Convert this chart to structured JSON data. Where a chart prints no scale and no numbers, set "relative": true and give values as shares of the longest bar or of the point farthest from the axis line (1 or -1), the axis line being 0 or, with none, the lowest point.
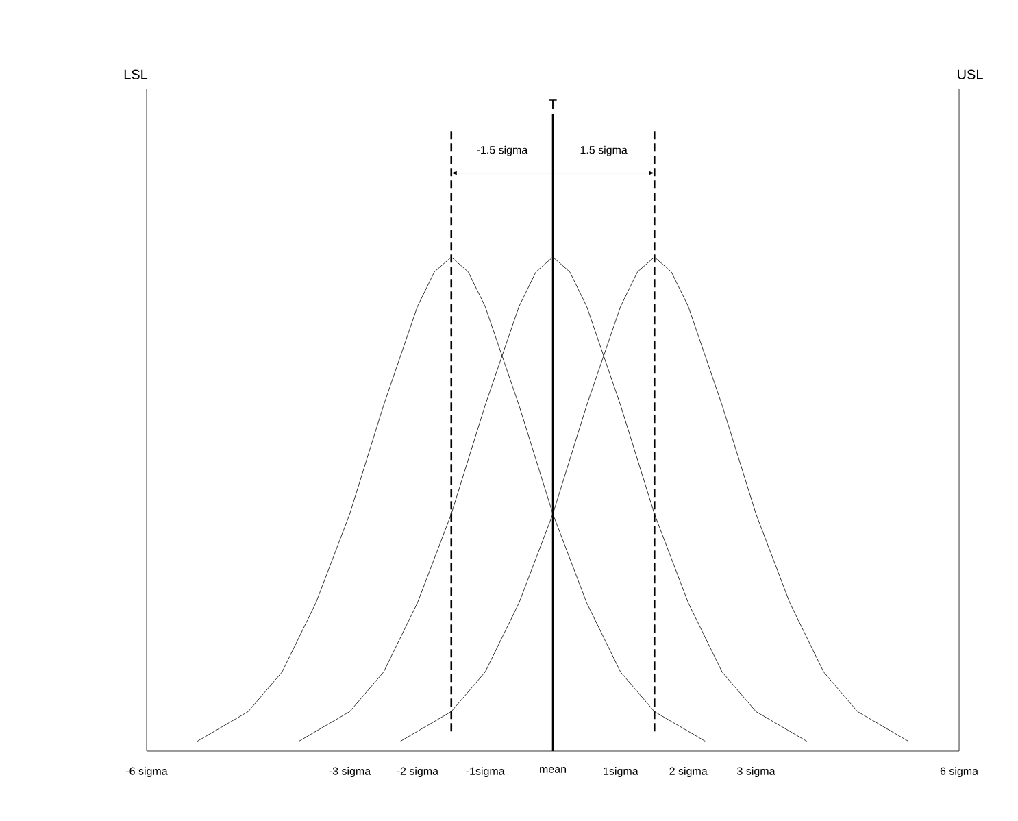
{
  "chart_data": {
    "type": "line",
    "relative": true,
    "marker": "none",
    "line_style": "solid",
    "series": [
      {
        "color": "#000000",
        "x": [
          -5.25,
          -4.5,
          -4,
          -3.5,
          -3,
          -2.5,
          -2,
          -1.75,
          -1.5,
          -1.25,
          -1,
          -0.5,
          0,
          0.5,
          1,
          1.5,
          2.25
        ],
        "values": [
          0.02,
          0.08,
          0.16,
          0.3,
          0.48,
          0.7,
          0.9,
          0.97,
          1,
          0.97,
          0.9,
          0.7,
          0.48,
          0.3,
          0.16,
          0.08,
          0.02
        ]
      },
      {
        "color": "#000000",
        "x": [
          -3.75,
          -3,
          -2.5,
          -2,
          -1.5,
          -1,
          -0.5,
          -0.25,
          0,
          0.25,
          0.5,
          1,
          1.5,
          2,
          2.5,
          3,
          3.75
        ],
        "values": [
          0.02,
          0.08,
          0.16,
          0.3,
          0.48,
          0.7,
          0.9,
          0.97,
          1,
          0.97,
          0.9,
          0.7,
          0.48,
          0.3,
          0.16,
          0.08,
          0.02
        ]
      },
      {
        "color": "#000000",
        "x": [
          -2.25,
          -1.5,
          -1,
          -0.5,
          0,
          0.5,
          1,
          1.25,
          1.5,
          1.75,
          2,
          2.5,
          3,
          3.5,
          4,
          4.5,
          5.25
        ],
        "values": [
          0.02,
          0.08,
          0.16,
          0.3,
          0.48,
          0.7,
          0.9,
          0.97,
          1,
          0.97,
          0.9,
          0.7,
          0.48,
          0.3,
          0.16,
          0.08,
          0.02
        ]
      }
    ],
    "xlim": [
      -6,
      6
    ],
    "xticks": [
      {
        "value": -6,
        "label": "-6 sigma"
      },
      {
        "value": -3,
        "label": "-3 sigma"
      },
      {
        "value": -2,
        "label": "-2 sigma"
      },
      {
        "value": -1,
        "label": "-1sigma"
      },
      {
        "value": 0,
        "label": "mean"
      },
      {
        "value": 1,
        "label": "1sigma"
      },
      {
        "value": 2,
        "label": "2 sigma"
      },
      {
        "value": 3,
        "label": "3 sigma"
      },
      {
        "value": 6,
        "label": "6 sigma"
      }
    ],
    "ref_lines": [
      {
        "axis": "x",
        "value": -6,
        "label": "LSL"
      },
      {
        "axis": "x",
        "value": 6,
        "label": "USL"
      },
      {
        "axis": "x",
        "value": 0,
        "label": "T"
      },
      {
        "axis": "x",
        "value": -1.5,
        "line_style": "dashed"
      },
      {
        "axis": "x",
        "value": 1.5,
        "line_style": "dashed"
      }
    ],
    "annotations": [
      "-1.5 sigma",
      "1.5 sigma"
    ]
  }
}
